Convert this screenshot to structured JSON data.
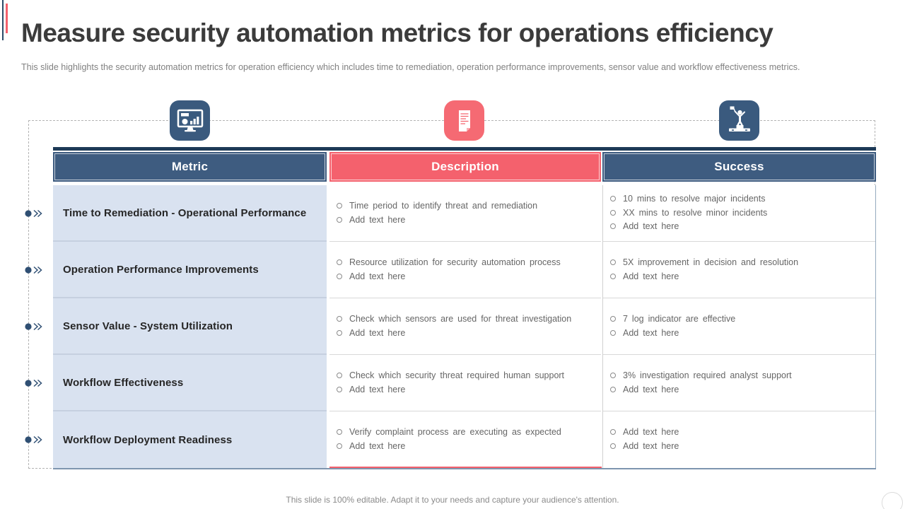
{
  "slide": {
    "title": "Measure security automation metrics for operations efficiency",
    "subtitle": "This slide highlights the security automation metrics for operation efficiency which includes time to remediation, operation performance improvements, sensor value and workflow effectiveness metrics.",
    "footer": "This slide is 100% editable. Adapt it to your needs and capture your audience's attention."
  },
  "icons": [
    {
      "name": "dashboard-monitor-icon",
      "color": "#3a5a7e"
    },
    {
      "name": "document-icon",
      "color": "#f56a73"
    },
    {
      "name": "winner-podium-icon",
      "color": "#3a5a7e"
    }
  ],
  "colors": {
    "header_navy": "#3e5c80",
    "header_red": "#f4616d",
    "top_border_navy": "#1d3a57",
    "metric_cell_blue": "#d9e2f0",
    "bottom_line_blue": "#7e95af",
    "bottom_line_red": "#f3606c",
    "rail_navy": "#2f4f73"
  },
  "table": {
    "headers": [
      {
        "label": "Metric"
      },
      {
        "label": "Description"
      },
      {
        "label": "Success"
      }
    ],
    "rows": [
      {
        "metric": "Time to Remediation - Operational Performance",
        "description": [
          "Time period to identify threat and remediation",
          "Add text here"
        ],
        "success": [
          "10 mins to resolve major incidents",
          "XX mins to resolve minor incidents",
          "Add text here"
        ]
      },
      {
        "metric": "Operation Performance Improvements",
        "description": [
          "Resource utilization for security automation process",
          "Add text here"
        ],
        "success": [
          "5X improvement in decision and resolution",
          "Add text here"
        ]
      },
      {
        "metric": "Sensor Value - System Utilization",
        "description": [
          "Check which sensors are used for threat investigation",
          "Add text here"
        ],
        "success": [
          "7 log indicator are effective",
          "Add text here"
        ]
      },
      {
        "metric": "Workflow Effectiveness",
        "description": [
          "Check which security threat required human support",
          "Add text here"
        ],
        "success": [
          "3% investigation required analyst support",
          "Add text here"
        ]
      },
      {
        "metric": "Workflow Deployment Readiness",
        "description": [
          "Verify complaint process are executing as expected",
          "Add text here"
        ],
        "success": [
          "Add text here",
          "Add text here"
        ]
      }
    ]
  }
}
